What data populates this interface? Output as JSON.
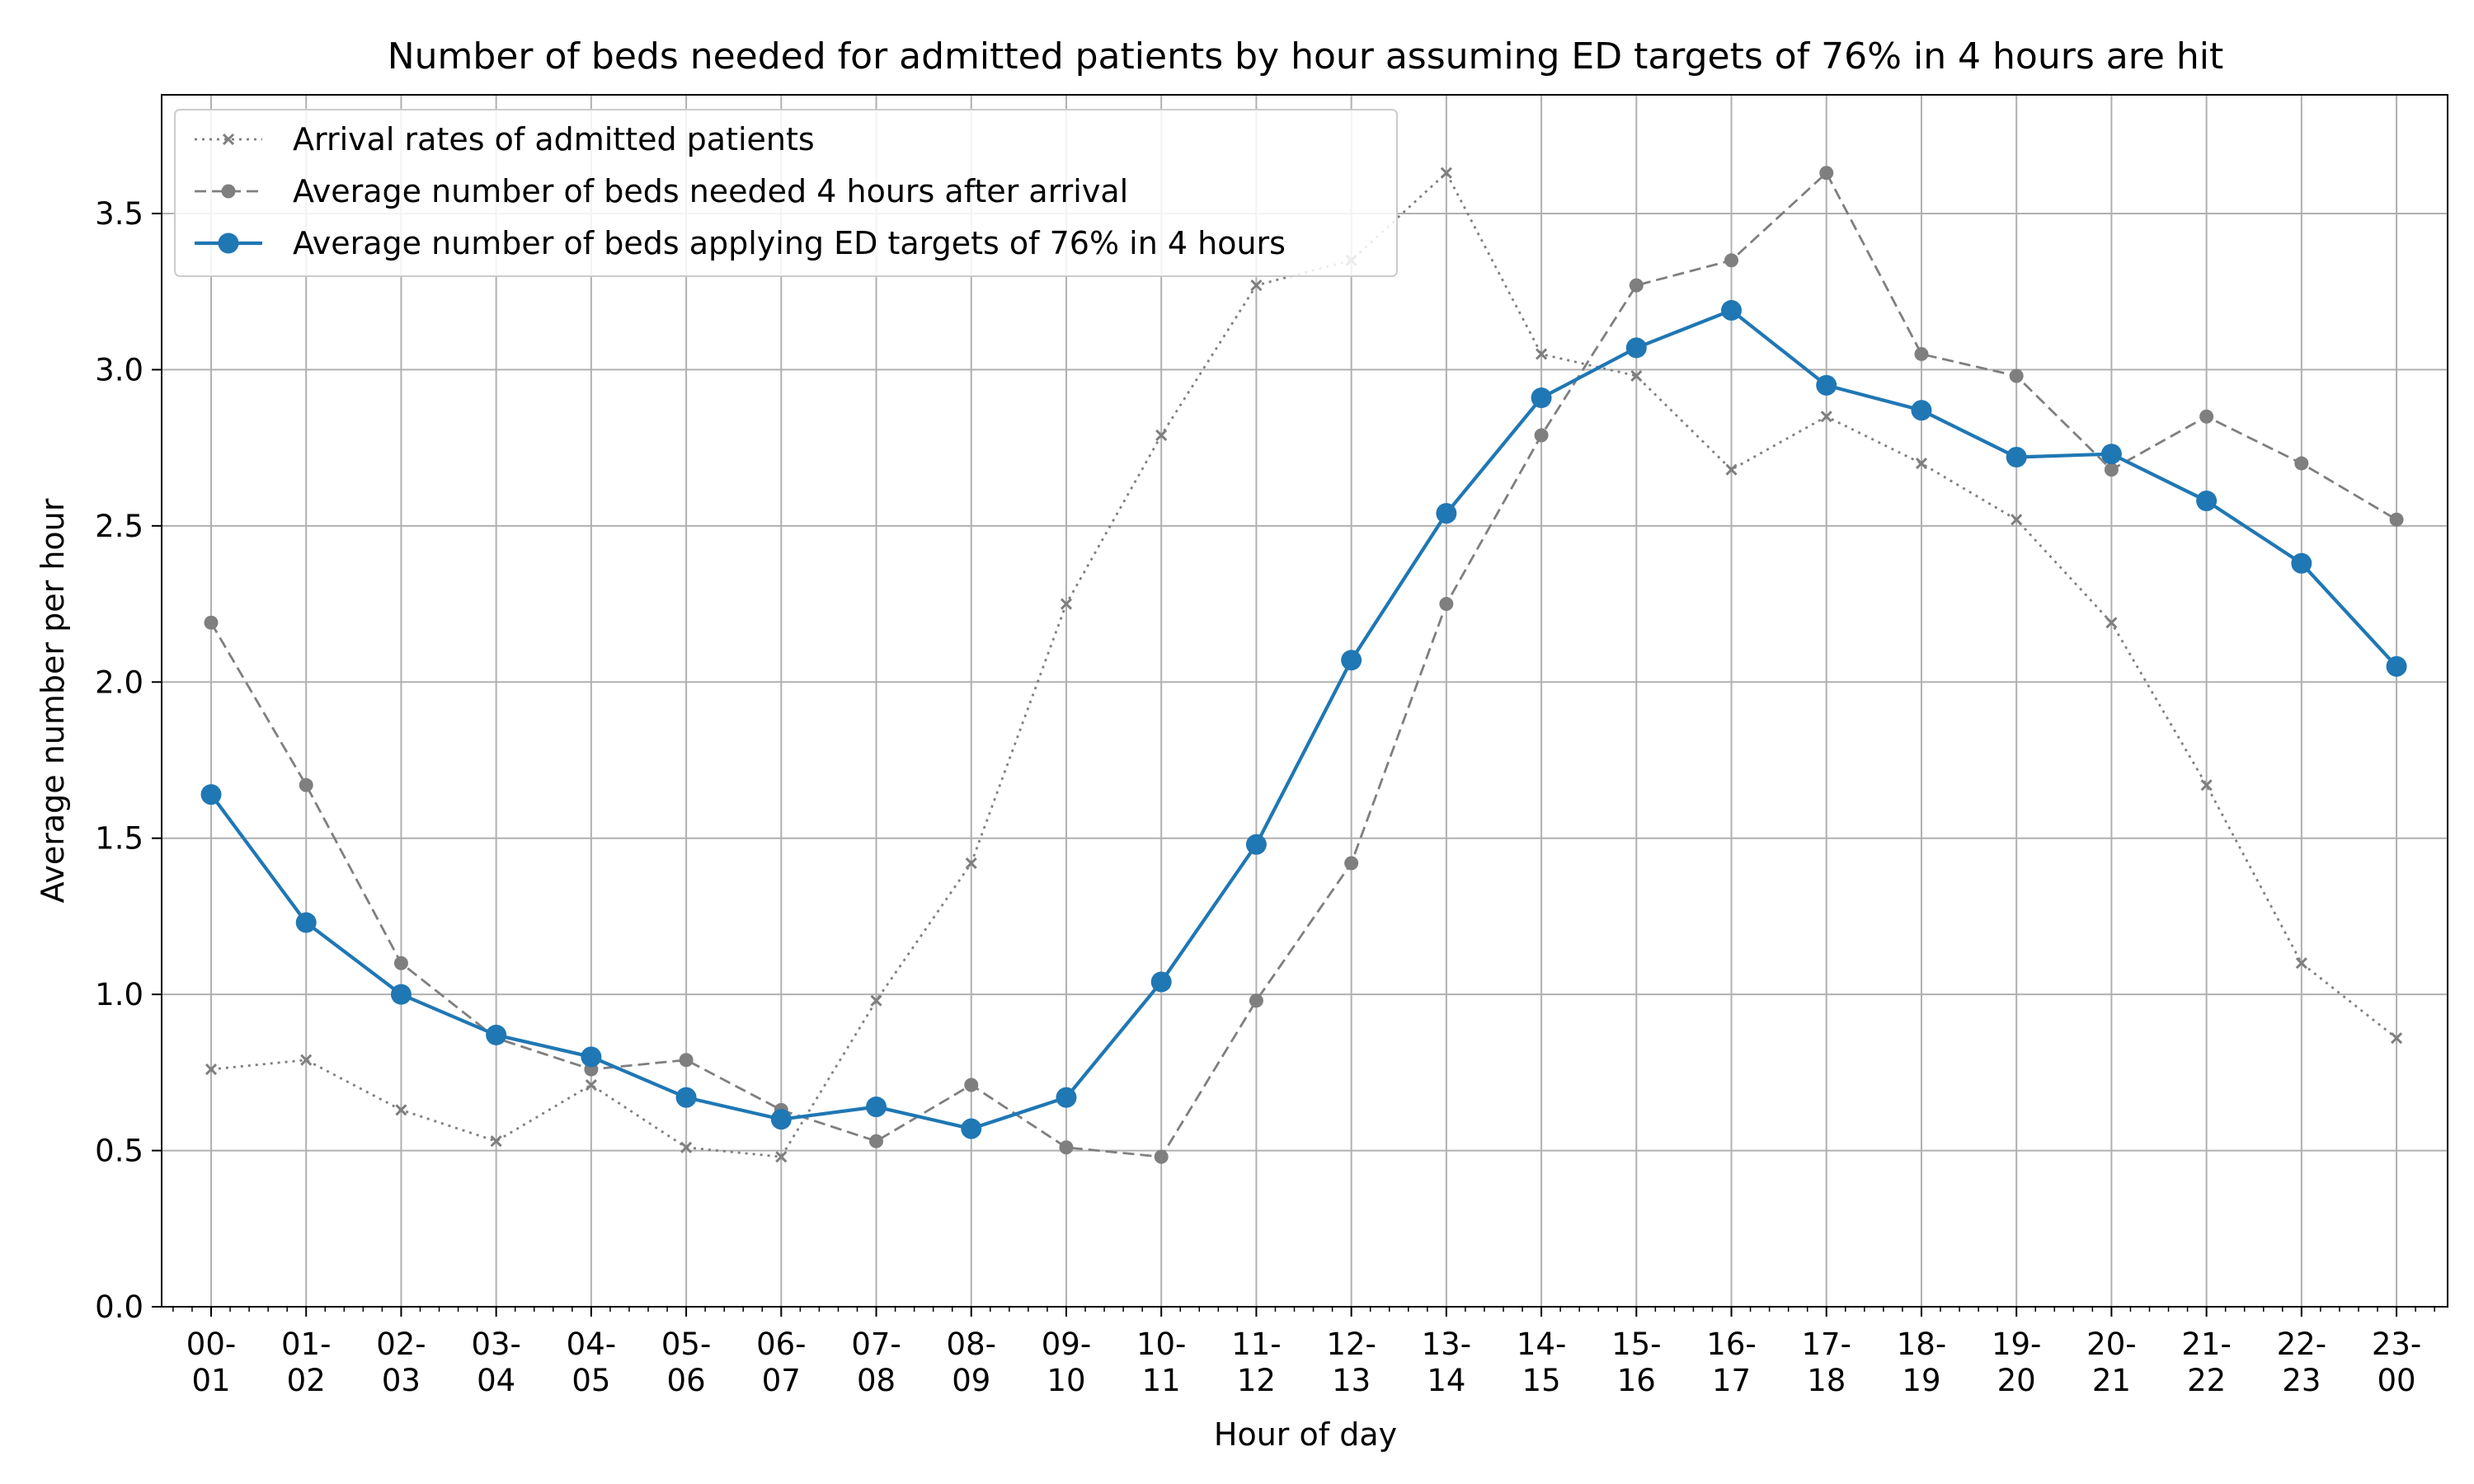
{
  "chart_data": {
    "type": "line",
    "title": "Number of beds needed for admitted patients by hour assuming ED targets of 76% in 4 hours are hit",
    "xlabel": "Hour of day",
    "ylabel": "Average number per hour",
    "ylim": [
      0,
      3.88
    ],
    "yticks": [
      0.0,
      0.5,
      1.0,
      1.5,
      2.0,
      2.5,
      3.0,
      3.5
    ],
    "ytick_labels": [
      "0.0",
      "0.5",
      "1.0",
      "1.5",
      "2.0",
      "2.5",
      "3.0",
      "3.5"
    ],
    "grid": true,
    "legend_position": "top-left",
    "categories": [
      [
        "00-",
        "01"
      ],
      [
        "01-",
        "02"
      ],
      [
        "02-",
        "03"
      ],
      [
        "03-",
        "04"
      ],
      [
        "04-",
        "05"
      ],
      [
        "05-",
        "06"
      ],
      [
        "06-",
        "07"
      ],
      [
        "07-",
        "08"
      ],
      [
        "08-",
        "09"
      ],
      [
        "09-",
        "10"
      ],
      [
        "10-",
        "11"
      ],
      [
        "11-",
        "12"
      ],
      [
        "12-",
        "13"
      ],
      [
        "13-",
        "14"
      ],
      [
        "14-",
        "15"
      ],
      [
        "15-",
        "16"
      ],
      [
        "16-",
        "17"
      ],
      [
        "17-",
        "18"
      ],
      [
        "18-",
        "19"
      ],
      [
        "19-",
        "20"
      ],
      [
        "20-",
        "21"
      ],
      [
        "21-",
        "22"
      ],
      [
        "22-",
        "23"
      ],
      [
        "23-",
        "00"
      ]
    ],
    "series": [
      {
        "name": "Arrival rates of admitted patients",
        "color": "#7f7f7f",
        "style": "dotted",
        "marker": "x",
        "values": [
          0.76,
          0.79,
          0.63,
          0.53,
          0.71,
          0.51,
          0.48,
          0.98,
          1.42,
          2.25,
          2.79,
          3.27,
          3.35,
          3.63,
          3.05,
          2.98,
          2.68,
          2.85,
          2.7,
          2.52,
          2.19,
          1.67,
          1.1,
          0.86
        ]
      },
      {
        "name": "Average number of beds needed 4 hours after arrival",
        "color": "#7f7f7f",
        "style": "dashed",
        "marker": "dot",
        "values": [
          2.19,
          1.67,
          1.1,
          0.86,
          0.76,
          0.79,
          0.63,
          0.53,
          0.71,
          0.51,
          0.48,
          0.98,
          1.42,
          2.25,
          2.79,
          3.27,
          3.35,
          3.63,
          3.05,
          2.98,
          2.68,
          2.85,
          2.7,
          2.52
        ]
      },
      {
        "name": "Average number of beds applying ED targets of 76% in 4 hours",
        "color": "#1f77b4",
        "style": "solid",
        "marker": "circle",
        "values": [
          1.64,
          1.23,
          1.0,
          0.87,
          0.8,
          0.67,
          0.6,
          0.64,
          0.57,
          0.67,
          1.04,
          1.48,
          2.07,
          2.54,
          2.91,
          3.07,
          3.19,
          2.95,
          2.87,
          2.72,
          2.73,
          2.58,
          2.38,
          2.05
        ]
      }
    ]
  }
}
